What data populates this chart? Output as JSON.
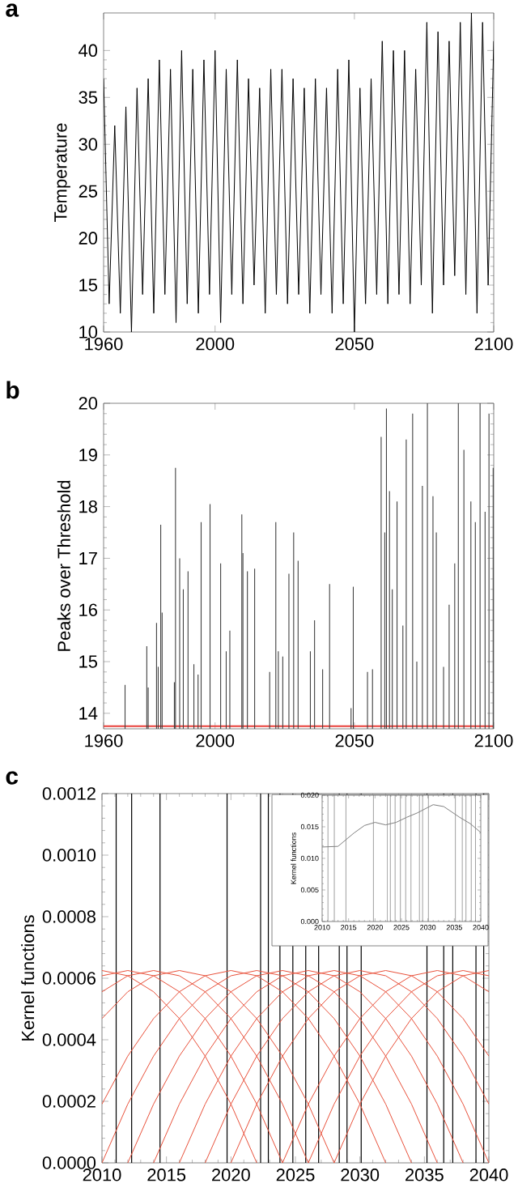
{
  "chart_data": [
    {
      "type": "line",
      "title": "a",
      "ylabel": "Temperature",
      "color": "#000000",
      "xlim": [
        1960,
        2100
      ],
      "ylim": [
        10,
        44
      ],
      "xticks": [
        1960,
        2000,
        2050,
        2100
      ],
      "yticks": [
        10,
        15,
        20,
        25,
        30,
        35,
        40
      ],
      "x": [
        1960,
        1962,
        1964,
        1966,
        1968,
        1970,
        1972,
        1974,
        1976,
        1978,
        1980,
        1982,
        1984,
        1986,
        1988,
        1990,
        1992,
        1994,
        1996,
        1998,
        2000,
        2002,
        2004,
        2006,
        2008,
        2010,
        2012,
        2014,
        2016,
        2018,
        2020,
        2022,
        2024,
        2026,
        2028,
        2030,
        2032,
        2034,
        2036,
        2038,
        2040,
        2042,
        2044,
        2046,
        2048,
        2050,
        2052,
        2054,
        2056,
        2058,
        2060,
        2062,
        2064,
        2066,
        2068,
        2070,
        2072,
        2074,
        2076,
        2078,
        2080,
        2082,
        2084,
        2086,
        2088,
        2090,
        2092,
        2094,
        2096,
        2098,
        2100
      ],
      "values": [
        37,
        13,
        32,
        12,
        34,
        10,
        36,
        14,
        37,
        12,
        39,
        14,
        38,
        11,
        40,
        13,
        38,
        12,
        39,
        14,
        40,
        11,
        38,
        14,
        39,
        13,
        37,
        15,
        36,
        12,
        38,
        14,
        38,
        13,
        37,
        14,
        36,
        12,
        37,
        14,
        36,
        12,
        38,
        13,
        39,
        10,
        36,
        13,
        37,
        14,
        41,
        13,
        40,
        14,
        40,
        13,
        38,
        15,
        43,
        12,
        42,
        15,
        41,
        16,
        43,
        14,
        44,
        12,
        43,
        15,
        41
      ]
    },
    {
      "type": "bar",
      "title": "b",
      "ylabel": "Peaks over Threshold",
      "color": "#404040",
      "xlim": [
        1960,
        2100
      ],
      "ylim": [
        13.7,
        20
      ],
      "xticks": [
        1960,
        2000,
        2050,
        2100
      ],
      "yticks": [
        14,
        15,
        16,
        17,
        18,
        19,
        20
      ],
      "x": [
        1967.7,
        1975.5,
        1976,
        1979,
        1979.6,
        1980.5,
        1981,
        1985.4,
        1985.8,
        1987.3,
        1988.6,
        1990.3,
        1992.4,
        1993.9,
        1995,
        1998.2,
        2002,
        2004,
        2005.3,
        2009.6,
        2010,
        2011.6,
        2014.2,
        2019.6,
        2021.8,
        2022.7,
        2024.3,
        2026.5,
        2028.2,
        2029.8,
        2034.2,
        2035.7,
        2038.6,
        2041.1,
        2048.8,
        2049.6,
        2054.7,
        2056.5,
        2059.6,
        2060.9,
        2061.5,
        2062.6,
        2063.6,
        2065.3,
        2067.4,
        2068.6,
        2070.9,
        2072.4,
        2074.4,
        2076.2,
        2078.2,
        2079.4,
        2082,
        2084,
        2086,
        2087.3,
        2089.3,
        2091.8,
        2093.4,
        2095.1,
        2096.9,
        2098.3,
        2099.8
      ],
      "values": [
        14.55,
        15.3,
        14.5,
        15.75,
        14.9,
        17.65,
        15.95,
        14.6,
        18.75,
        17,
        16.4,
        16.75,
        14.95,
        14.75,
        17.7,
        18.05,
        16.9,
        15.2,
        15.6,
        17.85,
        17.1,
        16.75,
        16.8,
        14.8,
        17.7,
        15.2,
        15.1,
        16.7,
        17.5,
        16.95,
        15.2,
        15.8,
        14.85,
        16.5,
        14.1,
        16.45,
        14.8,
        14.85,
        19.35,
        17.5,
        19.9,
        18.3,
        16.4,
        18.1,
        15.7,
        19.3,
        19.8,
        15,
        18.4,
        20,
        18.2,
        17.5,
        14.9,
        16.1,
        16.9,
        20,
        19.1,
        18.1,
        17.7,
        20,
        17.9,
        19.8,
        18.75
      ],
      "ref_lines": [
        {
          "axis": "y",
          "value": 13.75,
          "color": "#e8403a"
        }
      ]
    },
    {
      "type": "line",
      "title": "c",
      "ylabel": "Kernel functions",
      "xlim": [
        2010,
        2040
      ],
      "ylim": [
        0,
        0.0012
      ],
      "xticks": [
        2010,
        2015,
        2020,
        2025,
        2030,
        2035,
        2040
      ],
      "yticks": [
        {
          "value": 0,
          "label": "0.0000"
        },
        {
          "value": 0.0002,
          "label": "0.0002"
        },
        {
          "value": 0.0004,
          "label": "0.0004"
        },
        {
          "value": 0.0006,
          "label": "0.0006"
        },
        {
          "value": 0.0008,
          "label": "0.0008"
        },
        {
          "value": 0.001,
          "label": "0.0010"
        },
        {
          "value": 0.0012,
          "label": "0.0012"
        }
      ],
      "series": [
        {
          "color": "#e8503a",
          "x": [
            2010,
            2012,
            2014,
            2016,
            2018,
            2020,
            2022
          ],
          "values": [
            0.000625,
            0.000608,
            0.000556,
            0.000469,
            0.000347,
            0.000191,
            0
          ]
        },
        {
          "color": "#e8503a",
          "x": [
            2010,
            2012,
            2014,
            2016,
            2018,
            2020,
            2022,
            2024
          ],
          "values": [
            0.000608,
            0.000625,
            0.000608,
            0.000556,
            0.000469,
            0.000347,
            0.000191,
            0
          ]
        },
        {
          "color": "#e8503a",
          "x": [
            2010,
            2012,
            2014,
            2016,
            2018,
            2020,
            2022,
            2024,
            2026
          ],
          "values": [
            0.000556,
            0.000608,
            0.000625,
            0.000608,
            0.000556,
            0.000469,
            0.000347,
            0.000191,
            0
          ]
        },
        {
          "color": "#e8503a",
          "x": [
            2010,
            2012,
            2014,
            2016,
            2018,
            2020,
            2022,
            2024,
            2026,
            2028
          ],
          "values": [
            0.000469,
            0.000556,
            0.000608,
            0.000625,
            0.000608,
            0.000556,
            0.000469,
            0.000347,
            0.000191,
            0
          ]
        },
        {
          "color": "#e8503a",
          "x": [
            2010,
            2012,
            2014,
            2016,
            2018,
            2020,
            2022,
            2024,
            2026,
            2028,
            2030,
            2032
          ],
          "values": [
            0.000191,
            0.000347,
            0.000469,
            0.000556,
            0.000608,
            0.000625,
            0.000608,
            0.000556,
            0.000469,
            0.000347,
            0.000191,
            0
          ]
        },
        {
          "color": "#e8503a",
          "x": [
            2010,
            2012,
            2014,
            2016,
            2018,
            2020,
            2022,
            2024,
            2026,
            2028,
            2030,
            2032,
            2034
          ],
          "values": [
            0,
            0.000191,
            0.000347,
            0.000469,
            0.000556,
            0.000608,
            0.000625,
            0.000608,
            0.000556,
            0.000469,
            0.000347,
            0.000191,
            0
          ]
        },
        {
          "color": "#e8503a",
          "x": [
            2012,
            2014,
            2016,
            2018,
            2020,
            2022,
            2024,
            2026,
            2028,
            2030,
            2032,
            2034,
            2036
          ],
          "values": [
            0,
            0.000191,
            0.000347,
            0.000469,
            0.000556,
            0.000608,
            0.000625,
            0.000608,
            0.000556,
            0.000469,
            0.000347,
            0.000191,
            0
          ]
        },
        {
          "color": "#e8503a",
          "x": [
            2014,
            2016,
            2018,
            2020,
            2022,
            2024,
            2026,
            2028,
            2030,
            2032,
            2034,
            2036,
            2038
          ],
          "values": [
            0,
            0.000191,
            0.000347,
            0.000469,
            0.000556,
            0.000608,
            0.000625,
            0.000608,
            0.000556,
            0.000469,
            0.000347,
            0.000191,
            0
          ]
        },
        {
          "color": "#e8503a",
          "x": [
            2016,
            2018,
            2020,
            2022,
            2024,
            2026,
            2028,
            2030,
            2032,
            2034,
            2036,
            2038,
            2040
          ],
          "values": [
            0,
            0.000191,
            0.000347,
            0.000469,
            0.000556,
            0.000608,
            0.000625,
            0.000608,
            0.000556,
            0.000469,
            0.000347,
            0.000191,
            0
          ]
        },
        {
          "color": "#e8503a",
          "x": [
            2018,
            2020,
            2022,
            2024,
            2026,
            2028,
            2030,
            2032,
            2034,
            2036,
            2038,
            2040
          ],
          "values": [
            0,
            0.000191,
            0.000347,
            0.000469,
            0.000556,
            0.000608,
            0.000625,
            0.000608,
            0.000556,
            0.000469,
            0.000347,
            0.000191
          ]
        },
        {
          "color": "#e8503a",
          "x": [
            2020,
            2022,
            2024,
            2026,
            2028,
            2030,
            2032,
            2034,
            2036,
            2038,
            2040
          ],
          "values": [
            0,
            0.000191,
            0.000347,
            0.000469,
            0.000556,
            0.000608,
            0.000625,
            0.000608,
            0.000556,
            0.000469,
            0.000347
          ]
        },
        {
          "color": "#e8503a",
          "x": [
            2024,
            2026,
            2028,
            2030,
            2032,
            2034,
            2036,
            2038,
            2040
          ],
          "values": [
            0,
            0.000191,
            0.000347,
            0.000469,
            0.000556,
            0.000608,
            0.000625,
            0.000608,
            0.000556
          ]
        },
        {
          "color": "#e8503a",
          "x": [
            2026,
            2028,
            2030,
            2032,
            2034,
            2036,
            2038,
            2040
          ],
          "values": [
            0,
            0.000191,
            0.000347,
            0.000469,
            0.000556,
            0.000608,
            0.000625,
            0.000608
          ]
        },
        {
          "color": "#e8503a",
          "x": [
            2028,
            2030,
            2032,
            2034,
            2036,
            2038,
            2040
          ],
          "values": [
            0,
            0.000191,
            0.000347,
            0.000469,
            0.000556,
            0.000608,
            0.000625
          ]
        }
      ],
      "ref_lines": [
        {
          "axis": "x",
          "value": 2011.1,
          "color": "#000000"
        },
        {
          "axis": "x",
          "value": 2012.3,
          "color": "#000000"
        },
        {
          "axis": "x",
          "value": 2014.5,
          "color": "#000000"
        },
        {
          "axis": "x",
          "value": 2019.7,
          "color": "#000000"
        },
        {
          "axis": "x",
          "value": 2022.3,
          "color": "#000000"
        },
        {
          "axis": "x",
          "value": 2022.9,
          "color": "#000000"
        },
        {
          "axis": "x",
          "value": 2023.8,
          "color": "#000000"
        },
        {
          "axis": "x",
          "value": 2024.8,
          "color": "#000000"
        },
        {
          "axis": "x",
          "value": 2025.8,
          "color": "#000000"
        },
        {
          "axis": "x",
          "value": 2026.8,
          "color": "#000000"
        },
        {
          "axis": "x",
          "value": 2028.4,
          "color": "#000000"
        },
        {
          "axis": "x",
          "value": 2029.0,
          "color": "#000000"
        },
        {
          "axis": "x",
          "value": 2030.1,
          "color": "#000000"
        },
        {
          "axis": "x",
          "value": 2035.2,
          "color": "#000000"
        },
        {
          "axis": "x",
          "value": 2036.5,
          "color": "#000000"
        },
        {
          "axis": "x",
          "value": 2037.2,
          "color": "#000000"
        },
        {
          "axis": "x",
          "value": 2039.0,
          "color": "#000000"
        },
        {
          "axis": "x",
          "value": 2039.6,
          "color": "#000000"
        }
      ]
    },
    {
      "type": "line",
      "ylabel": "Kernel functions",
      "color": "#808080",
      "xlim": [
        2010,
        2040
      ],
      "ylim": [
        0,
        0.02
      ],
      "xticks": [
        2010,
        2015,
        2020,
        2025,
        2030,
        2035,
        2040
      ],
      "yticks": [
        {
          "value": 0,
          "label": "0.000"
        },
        {
          "value": 0.005,
          "label": "0.005"
        },
        {
          "value": 0.01,
          "label": "0.010"
        },
        {
          "value": 0.015,
          "label": "0.015"
        },
        {
          "value": 0.02,
          "label": "0.020"
        }
      ],
      "x": [
        2010,
        2013,
        2016,
        2018,
        2020,
        2022,
        2024,
        2026,
        2028,
        2031,
        2033,
        2036,
        2038,
        2040
      ],
      "values": [
        0.0118,
        0.0119,
        0.014,
        0.0152,
        0.0157,
        0.0153,
        0.0157,
        0.0165,
        0.0172,
        0.0185,
        0.0182,
        0.0165,
        0.0155,
        0.0141
      ],
      "ref_lines": [
        {
          "axis": "x",
          "value": 2011.1,
          "color": "#606060"
        },
        {
          "axis": "x",
          "value": 2012.3,
          "color": "#606060"
        },
        {
          "axis": "x",
          "value": 2014.5,
          "color": "#606060"
        },
        {
          "axis": "x",
          "value": 2019.7,
          "color": "#606060"
        },
        {
          "axis": "x",
          "value": 2022.3,
          "color": "#606060"
        },
        {
          "axis": "x",
          "value": 2022.9,
          "color": "#606060"
        },
        {
          "axis": "x",
          "value": 2023.8,
          "color": "#606060"
        },
        {
          "axis": "x",
          "value": 2024.8,
          "color": "#606060"
        },
        {
          "axis": "x",
          "value": 2025.8,
          "color": "#606060"
        },
        {
          "axis": "x",
          "value": 2026.8,
          "color": "#606060"
        },
        {
          "axis": "x",
          "value": 2028.4,
          "color": "#606060"
        },
        {
          "axis": "x",
          "value": 2029.0,
          "color": "#606060"
        },
        {
          "axis": "x",
          "value": 2030.1,
          "color": "#606060"
        },
        {
          "axis": "x",
          "value": 2035.2,
          "color": "#606060"
        },
        {
          "axis": "x",
          "value": 2036.5,
          "color": "#606060"
        },
        {
          "axis": "x",
          "value": 2037.2,
          "color": "#606060"
        },
        {
          "axis": "x",
          "value": 2038.2,
          "color": "#606060"
        },
        {
          "axis": "x",
          "value": 2039.0,
          "color": "#606060"
        }
      ]
    }
  ]
}
